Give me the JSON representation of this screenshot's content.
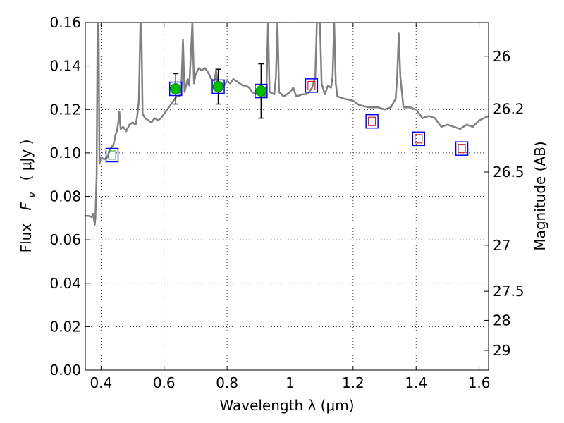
{
  "chart_data": {
    "type": "scatter",
    "xlabel": "Wavelength  λ (μm)",
    "ylabel_text": "Flux",
    "ylabel_var": "F",
    "ylabel_sub": "ν",
    "ylabel_units": "( μJy )",
    "y2label": "Magnitude (AB)",
    "xlim": [
      0.35,
      1.63
    ],
    "ylim": [
      0.0,
      0.16
    ],
    "grid": true,
    "x_ticks": [
      0.4,
      0.6,
      0.8,
      1.0,
      1.2,
      1.4,
      1.6
    ],
    "x_tick_labels": [
      "0.4",
      "0.6",
      "0.8",
      "1",
      "1.2",
      "1.4",
      "1.6"
    ],
    "y_ticks": [
      0.0,
      0.02,
      0.04,
      0.06,
      0.08,
      0.1,
      0.12,
      0.14,
      0.16
    ],
    "y_tick_labels": [
      "0.00",
      "0.02",
      "0.04",
      "0.06",
      "0.08",
      "0.10",
      "0.12",
      "0.14",
      "0.16"
    ],
    "y2_ticks": [
      {
        "label": "26",
        "flux": 0.1445
      },
      {
        "label": "26.2",
        "flux": 0.1202
      },
      {
        "label": "26.5",
        "flux": 0.0912
      },
      {
        "label": "27",
        "flux": 0.0575
      },
      {
        "label": "27.5",
        "flux": 0.0363
      },
      {
        "label": "28",
        "flux": 0.0229
      },
      {
        "label": "29",
        "flux": 0.0091
      }
    ],
    "spectrum_color": "#808080",
    "spectrum": [
      [
        0.35,
        0.071
      ],
      [
        0.36,
        0.071
      ],
      [
        0.37,
        0.0705
      ],
      [
        0.375,
        0.072
      ],
      [
        0.38,
        0.067
      ],
      [
        0.382,
        0.07
      ],
      [
        0.386,
        0.09
      ],
      [
        0.389,
        0.16
      ],
      [
        0.392,
        0.16
      ],
      [
        0.395,
        0.095
      ],
      [
        0.4,
        0.098
      ],
      [
        0.41,
        0.097
      ],
      [
        0.42,
        0.098
      ],
      [
        0.43,
        0.102
      ],
      [
        0.44,
        0.104
      ],
      [
        0.445,
        0.108
      ],
      [
        0.45,
        0.11
      ],
      [
        0.455,
        0.114
      ],
      [
        0.458,
        0.119
      ],
      [
        0.462,
        0.111
      ],
      [
        0.47,
        0.112
      ],
      [
        0.48,
        0.11
      ],
      [
        0.49,
        0.113
      ],
      [
        0.5,
        0.114
      ],
      [
        0.51,
        0.113
      ],
      [
        0.515,
        0.117
      ],
      [
        0.52,
        0.124
      ],
      [
        0.525,
        0.16
      ],
      [
        0.528,
        0.16
      ],
      [
        0.532,
        0.118
      ],
      [
        0.54,
        0.116
      ],
      [
        0.55,
        0.115
      ],
      [
        0.56,
        0.114
      ],
      [
        0.57,
        0.116
      ],
      [
        0.58,
        0.115
      ],
      [
        0.59,
        0.116
      ],
      [
        0.6,
        0.118
      ],
      [
        0.61,
        0.12
      ],
      [
        0.62,
        0.122
      ],
      [
        0.63,
        0.124
      ],
      [
        0.64,
        0.126
      ],
      [
        0.65,
        0.126
      ],
      [
        0.655,
        0.13
      ],
      [
        0.66,
        0.152
      ],
      [
        0.665,
        0.128
      ],
      [
        0.67,
        0.131
      ],
      [
        0.675,
        0.134
      ],
      [
        0.68,
        0.131
      ],
      [
        0.685,
        0.145
      ],
      [
        0.69,
        0.16
      ],
      [
        0.695,
        0.132
      ],
      [
        0.7,
        0.136
      ],
      [
        0.71,
        0.139
      ],
      [
        0.72,
        0.138
      ],
      [
        0.73,
        0.139
      ],
      [
        0.74,
        0.137
      ],
      [
        0.75,
        0.134
      ],
      [
        0.76,
        0.133
      ],
      [
        0.765,
        0.138
      ],
      [
        0.77,
        0.132
      ],
      [
        0.78,
        0.13
      ],
      [
        0.79,
        0.131
      ],
      [
        0.8,
        0.133
      ],
      [
        0.81,
        0.132
      ],
      [
        0.82,
        0.134
      ],
      [
        0.83,
        0.133
      ],
      [
        0.84,
        0.132
      ],
      [
        0.85,
        0.131
      ],
      [
        0.86,
        0.131
      ],
      [
        0.87,
        0.13
      ],
      [
        0.88,
        0.128
      ],
      [
        0.89,
        0.127
      ],
      [
        0.9,
        0.128
      ],
      [
        0.91,
        0.127
      ],
      [
        0.92,
        0.126
      ],
      [
        0.925,
        0.13
      ],
      [
        0.93,
        0.16
      ],
      [
        0.935,
        0.128
      ],
      [
        0.95,
        0.127
      ],
      [
        0.955,
        0.135
      ],
      [
        0.96,
        0.16
      ],
      [
        0.965,
        0.128
      ],
      [
        0.98,
        0.126
      ],
      [
        0.99,
        0.127
      ],
      [
        1.0,
        0.128
      ],
      [
        1.01,
        0.13
      ],
      [
        1.015,
        0.128
      ],
      [
        1.02,
        0.126
      ],
      [
        1.04,
        0.127
      ],
      [
        1.05,
        0.127
      ],
      [
        1.06,
        0.128
      ],
      [
        1.07,
        0.13
      ],
      [
        1.08,
        0.135
      ],
      [
        1.085,
        0.16
      ],
      [
        1.095,
        0.16
      ],
      [
        1.1,
        0.132
      ],
      [
        1.11,
        0.127
      ],
      [
        1.12,
        0.131
      ],
      [
        1.13,
        0.13
      ],
      [
        1.135,
        0.135
      ],
      [
        1.14,
        0.16
      ],
      [
        1.145,
        0.132
      ],
      [
        1.15,
        0.126
      ],
      [
        1.17,
        0.125
      ],
      [
        1.2,
        0.124
      ],
      [
        1.22,
        0.122
      ],
      [
        1.25,
        0.121
      ],
      [
        1.28,
        0.121
      ],
      [
        1.3,
        0.12
      ],
      [
        1.32,
        0.121
      ],
      [
        1.335,
        0.125
      ],
      [
        1.34,
        0.135
      ],
      [
        1.345,
        0.155
      ],
      [
        1.35,
        0.135
      ],
      [
        1.36,
        0.121
      ],
      [
        1.38,
        0.121
      ],
      [
        1.4,
        0.12
      ],
      [
        1.42,
        0.116
      ],
      [
        1.44,
        0.117
      ],
      [
        1.46,
        0.116
      ],
      [
        1.48,
        0.112
      ],
      [
        1.5,
        0.113
      ],
      [
        1.52,
        0.112
      ],
      [
        1.54,
        0.111
      ],
      [
        1.56,
        0.113
      ],
      [
        1.58,
        0.112
      ],
      [
        1.6,
        0.115
      ],
      [
        1.63,
        0.117
      ]
    ],
    "photometry": [
      {
        "x": 0.435,
        "y": 0.099,
        "inner": "#2ca02c",
        "marker": "square"
      },
      {
        "x": 0.637,
        "y": 0.1295,
        "yerr": 0.007,
        "marker": "circle"
      },
      {
        "x": 0.772,
        "y": 0.1305,
        "yerr": 0.008,
        "marker": "circle"
      },
      {
        "x": 0.908,
        "y": 0.1285,
        "yerr": 0.0125,
        "marker": "circle"
      },
      {
        "x": 1.068,
        "y": 0.131,
        "inner": "#cc0000",
        "marker": "square"
      },
      {
        "x": 1.26,
        "y": 0.1145,
        "inner": "#cc0000",
        "marker": "square"
      },
      {
        "x": 1.408,
        "y": 0.1065,
        "inner": "#cc0000",
        "marker": "square"
      },
      {
        "x": 1.545,
        "y": 0.102,
        "inner": "#cc0000",
        "marker": "square"
      }
    ],
    "model_square_color": "#0000ff",
    "circle_color": "#00bb00",
    "errorbar_color": "#000000"
  }
}
